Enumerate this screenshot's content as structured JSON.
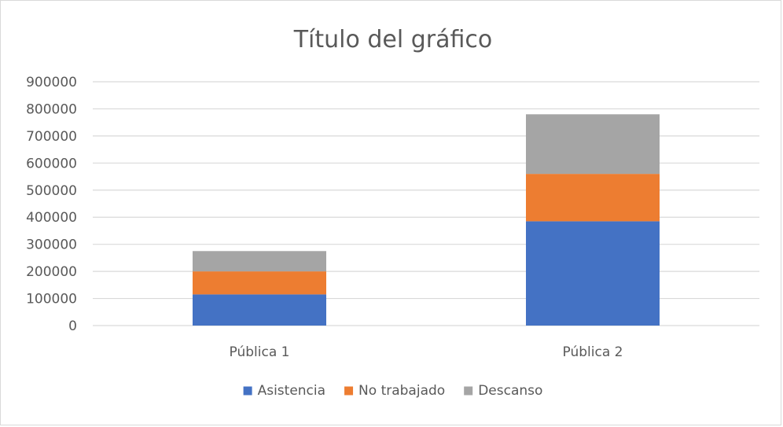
{
  "chart_data": {
    "type": "bar",
    "stacked": true,
    "title": "Título del gráfico",
    "xlabel": "",
    "ylabel": "",
    "categories": [
      "Pública 1",
      "Pública 2"
    ],
    "ylim": [
      0,
      900000
    ],
    "yticks": [
      0,
      100000,
      200000,
      300000,
      400000,
      500000,
      600000,
      700000,
      800000,
      900000
    ],
    "grid": true,
    "legend_position": "bottom",
    "series": [
      {
        "name": "Asistencia",
        "color": "#4472C4",
        "values": [
          115000,
          385000
        ]
      },
      {
        "name": "No trabajado",
        "color": "#ED7D31",
        "values": [
          85000,
          175000
        ]
      },
      {
        "name": "Descanso",
        "color": "#A5A5A5",
        "values": [
          75000,
          220000
        ]
      }
    ]
  }
}
